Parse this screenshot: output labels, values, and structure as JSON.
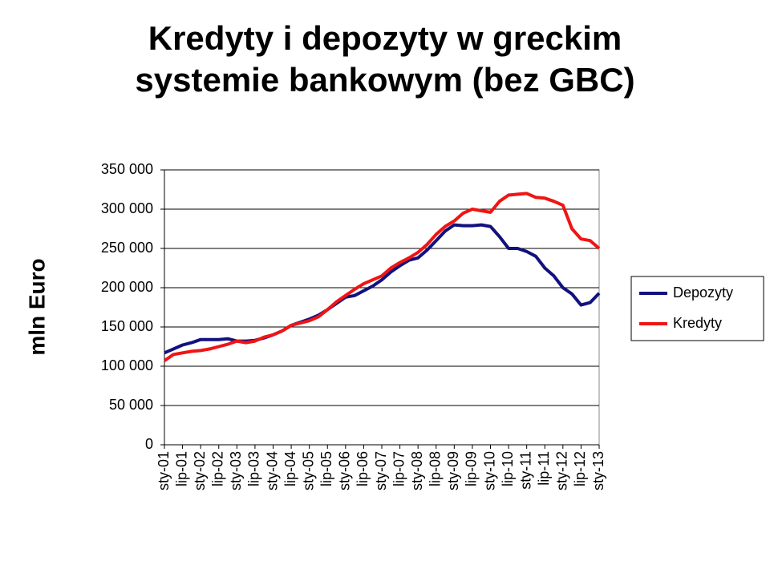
{
  "chart_data": {
    "type": "line",
    "title": "Kredyty i depozyty w greckim systemie bankowym (bez GBC)",
    "y_label": "mln Euro",
    "categories": [
      "sty-01",
      null,
      "lip-01",
      null,
      "sty-02",
      null,
      "lip-02",
      null,
      "sty-03",
      null,
      "lip-03",
      null,
      "sty-04",
      null,
      "lip-04",
      null,
      "sty-05",
      null,
      "lip-05",
      null,
      "sty-06",
      null,
      "lip-06",
      null,
      "sty-07",
      null,
      "lip-07",
      null,
      "sty-08",
      null,
      "lip-08",
      null,
      "sty-09",
      null,
      "lip-09",
      null,
      "sty-10",
      null,
      "lip-10",
      null,
      "sty-11",
      null,
      "lip-11",
      null,
      "sty-12",
      null,
      "lip-12",
      null,
      "sty-13"
    ],
    "series": [
      {
        "name": "Depozyty",
        "color": "#12127e",
        "values": [
          117000,
          122000,
          127000,
          130000,
          134000,
          134000,
          134000,
          135000,
          132000,
          132000,
          133000,
          136000,
          140000,
          145000,
          152000,
          156000,
          160000,
          165000,
          172000,
          180000,
          188000,
          190000,
          196000,
          202000,
          210000,
          220000,
          228000,
          235000,
          238000,
          248000,
          260000,
          272000,
          280000,
          279000,
          279000,
          280000,
          278000,
          265000,
          250000,
          250000,
          246000,
          240000,
          225000,
          215000,
          200000,
          192000,
          178000,
          181000,
          193000
        ]
      },
      {
        "name": "Kredyty",
        "color": "#f01414",
        "values": [
          107000,
          115000,
          117000,
          119000,
          120000,
          122000,
          125000,
          128000,
          132000,
          130000,
          132000,
          137000,
          140000,
          145000,
          152000,
          155000,
          158000,
          163000,
          172000,
          182000,
          190000,
          198000,
          205000,
          210000,
          215000,
          225000,
          232000,
          238000,
          245000,
          255000,
          268000,
          278000,
          285000,
          295000,
          300000,
          298000,
          296000,
          310000,
          318000,
          319000,
          320000,
          315000,
          314000,
          310000,
          305000,
          275000,
          262000,
          260000,
          250000
        ]
      }
    ],
    "ylim": [
      0,
      350000
    ],
    "yticks": [
      {
        "value": 0,
        "label": "0"
      },
      {
        "value": 50000,
        "label": "50 000"
      },
      {
        "value": 100000,
        "label": "100 000"
      },
      {
        "value": 150000,
        "label": "150 000"
      },
      {
        "value": 200000,
        "label": "200 000"
      },
      {
        "value": 250000,
        "label": "250 000"
      },
      {
        "value": 300000,
        "label": "300 000"
      },
      {
        "value": 350000,
        "label": "350 000"
      }
    ],
    "grid": true,
    "legend": "right"
  }
}
